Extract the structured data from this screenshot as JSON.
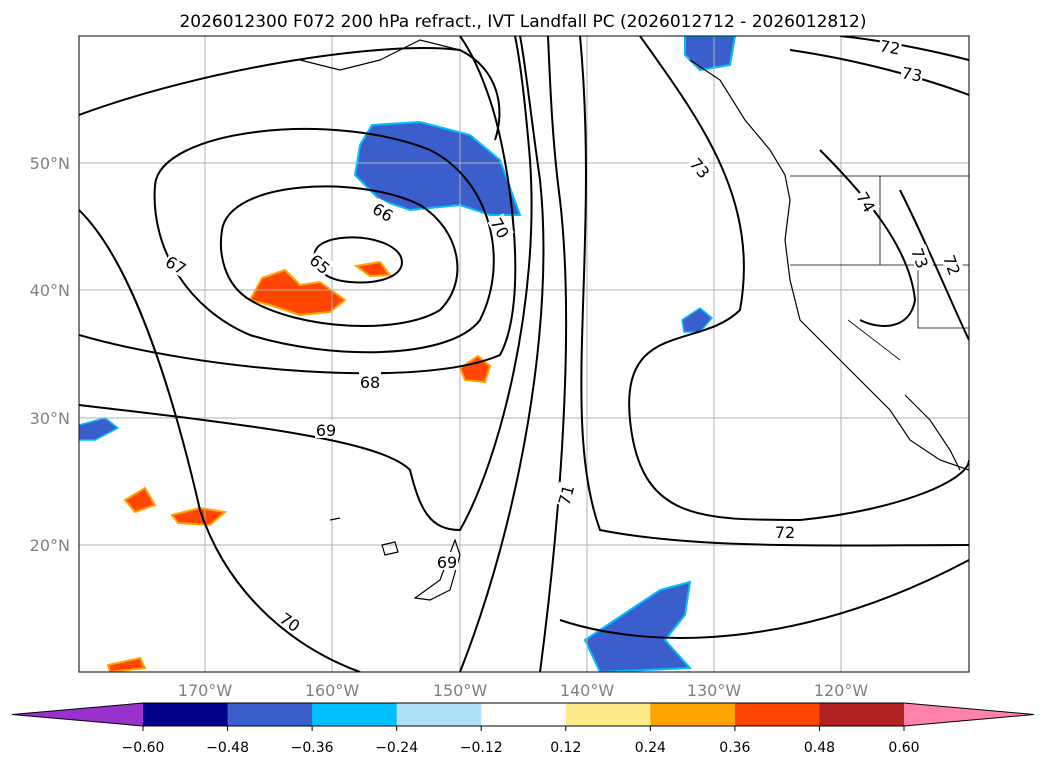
{
  "title": "2026012300 F072 200 hPa refract., IVT Landfall PC (2026012712 - 2026012812)",
  "lon_labels": [
    "170°W",
    "160°W",
    "150°W",
    "140°W",
    "130°W",
    "120°W"
  ],
  "lat_labels": [
    "50°N",
    "40°N",
    "30°N",
    "20°N"
  ],
  "contour_labels": [
    "65",
    "66",
    "67",
    "68",
    "69",
    "69",
    "70",
    "70",
    "71",
    "72",
    "72",
    "73",
    "73",
    "73",
    "74",
    "72"
  ],
  "colorbar": {
    "colors": [
      "#9932cc",
      "#00008b",
      "#3a5fcd",
      "#00bfff",
      "#b0e0fa",
      "#ffffff",
      "#ffec8b",
      "#ffa500",
      "#ff4500",
      "#b22222",
      "#ff82ab"
    ],
    "ticks": [
      "−0.60",
      "−0.48",
      "−0.36",
      "−0.24",
      "−0.12",
      "0.12",
      "0.24",
      "0.36",
      "0.48",
      "0.60"
    ]
  },
  "colors": {
    "label": "#808080",
    "grid": "#b0b0b0",
    "contour": "#000000"
  }
}
